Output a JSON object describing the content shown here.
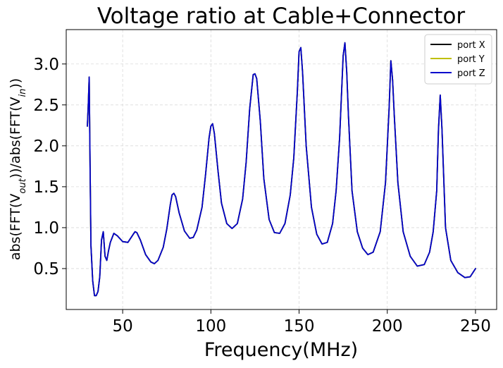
{
  "chart_data": {
    "type": "line",
    "title": "Voltage ratio at Cable+Connector",
    "xlabel": "Frequency(MHz)",
    "ylabel": {
      "parts": [
        {
          "text": "abs(FFT(V"
        },
        {
          "text": "out",
          "sub": true
        },
        {
          "text": "))/abs(FFT(V"
        },
        {
          "text": "in",
          "sub": true
        },
        {
          "text": "))"
        }
      ]
    },
    "xlim": [
      18,
      262
    ],
    "ylim": [
      0,
      3.42
    ],
    "xticks": [
      50,
      100,
      150,
      200,
      250
    ],
    "yticks": [
      0.5,
      1.0,
      1.5,
      2.0,
      2.5,
      3.0
    ],
    "xtick_labels": [
      "50",
      "100",
      "150",
      "200",
      "250"
    ],
    "ytick_labels": [
      "0.5",
      "1.0",
      "1.5",
      "2.0",
      "2.5",
      "3.0"
    ],
    "grid": true,
    "legend_position": "top-right",
    "series": [
      {
        "name": "port X",
        "color": "#000000"
      },
      {
        "name": "port Y",
        "color": "#bfbf00"
      },
      {
        "name": "port Z",
        "color": "#0000cc"
      }
    ],
    "curve": {
      "x": [
        30,
        30.5,
        31,
        31.5,
        32,
        33,
        34,
        35,
        36,
        37,
        38,
        39,
        40,
        41,
        42,
        43,
        45,
        47,
        50,
        53,
        56,
        57,
        58,
        60,
        63,
        66,
        68,
        70,
        73,
        75,
        77,
        78,
        79,
        80,
        82,
        85,
        88,
        90,
        92,
        95,
        97,
        99,
        100,
        101,
        102,
        104,
        106,
        109,
        112,
        115,
        118,
        120,
        122,
        124,
        125,
        126,
        128,
        130,
        133,
        136,
        139,
        142,
        145,
        147,
        149,
        150,
        151,
        152,
        154,
        157,
        160,
        163,
        166,
        169,
        171,
        173,
        175,
        176,
        177,
        178,
        180,
        183,
        186,
        189,
        192,
        196,
        199,
        201,
        202,
        203,
        204,
        206,
        209,
        213,
        217,
        221,
        224,
        226,
        228,
        229,
        230,
        231,
        233,
        236,
        240,
        244,
        247,
        250
      ],
      "y": [
        2.24,
        2.5,
        2.84,
        1.8,
        0.78,
        0.35,
        0.17,
        0.17,
        0.22,
        0.4,
        0.85,
        0.95,
        0.65,
        0.6,
        0.72,
        0.82,
        0.93,
        0.9,
        0.83,
        0.82,
        0.92,
        0.95,
        0.94,
        0.85,
        0.67,
        0.58,
        0.56,
        0.6,
        0.76,
        0.98,
        1.28,
        1.4,
        1.42,
        1.38,
        1.18,
        0.96,
        0.87,
        0.88,
        0.97,
        1.25,
        1.65,
        2.1,
        2.24,
        2.27,
        2.15,
        1.7,
        1.3,
        1.05,
        0.99,
        1.05,
        1.35,
        1.8,
        2.45,
        2.87,
        2.88,
        2.82,
        2.3,
        1.6,
        1.1,
        0.94,
        0.93,
        1.05,
        1.4,
        1.85,
        2.65,
        3.15,
        3.2,
        2.9,
        2.0,
        1.25,
        0.92,
        0.8,
        0.82,
        1.05,
        1.45,
        2.1,
        3.1,
        3.26,
        2.9,
        2.35,
        1.45,
        0.95,
        0.75,
        0.67,
        0.7,
        0.95,
        1.55,
        2.45,
        3.04,
        2.8,
        2.35,
        1.55,
        0.95,
        0.65,
        0.53,
        0.55,
        0.7,
        0.95,
        1.45,
        2.2,
        2.62,
        2.2,
        1.0,
        0.6,
        0.45,
        0.39,
        0.4,
        0.5
      ]
    }
  }
}
